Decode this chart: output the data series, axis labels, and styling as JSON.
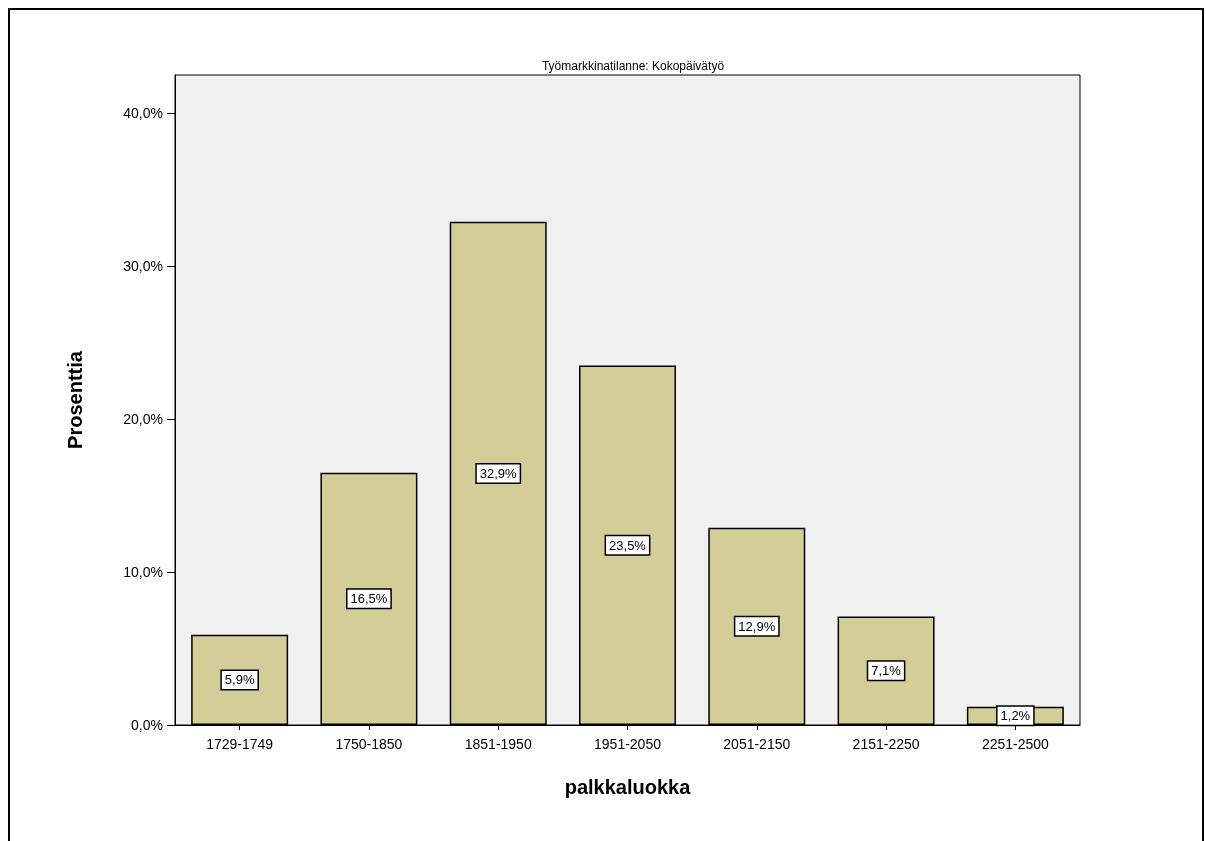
{
  "chart_data": {
    "type": "bar",
    "title": "Työmarkkinatilanne: Kokopäivätyö",
    "xlabel": "palkkaluokka",
    "ylabel": "Prosenttia",
    "categories": [
      "1729-1749",
      "1750-1850",
      "1851-1950",
      "1951-2050",
      "2051-2150",
      "2151-2250",
      "2251-2500"
    ],
    "values": [
      5.9,
      16.5,
      32.9,
      23.5,
      12.9,
      7.1,
      1.2
    ],
    "value_labels": [
      "5,9%",
      "16,5%",
      "32,9%",
      "23,5%",
      "12,9%",
      "7,1%",
      "1,2%"
    ],
    "color": "#d3ce97",
    "ylim": [
      0,
      42.5
    ],
    "yticks": [
      {
        "value": 0,
        "label": "0,0%"
      },
      {
        "value": 10,
        "label": "10,0%"
      },
      {
        "value": 20,
        "label": "20,0%"
      },
      {
        "value": 30,
        "label": "30,0%"
      },
      {
        "value": 40,
        "label": "40,0%"
      }
    ],
    "grid": false
  }
}
